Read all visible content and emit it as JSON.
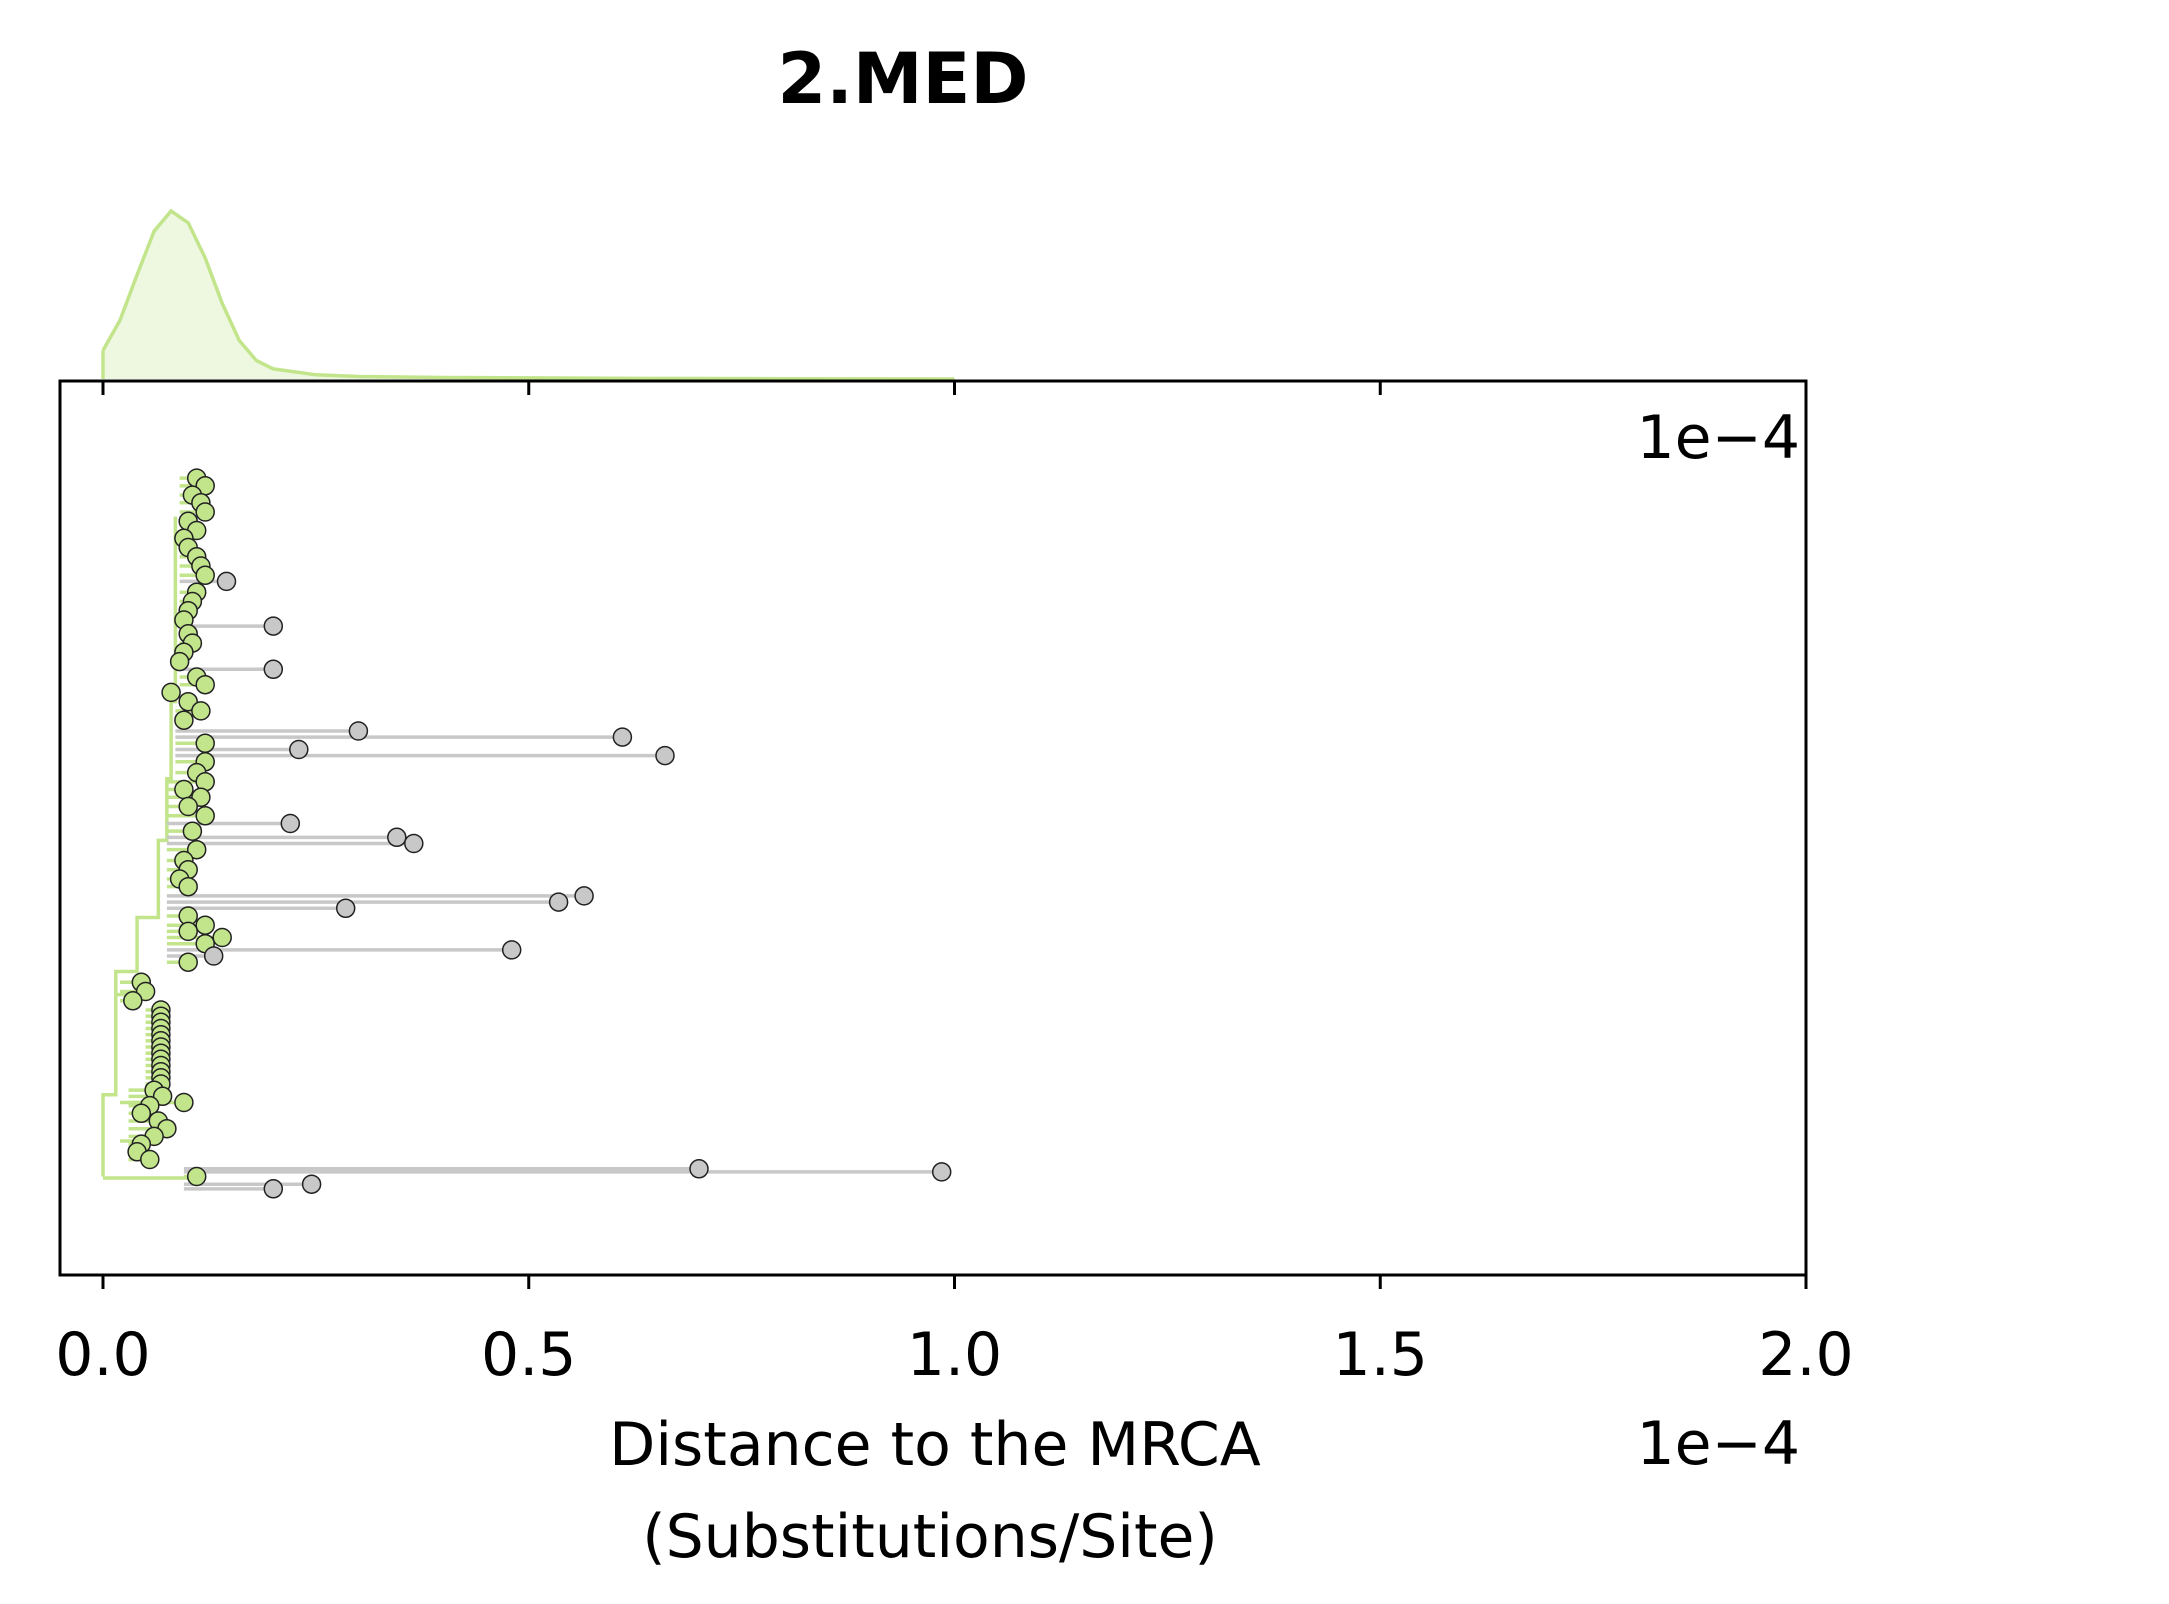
{
  "chart_data": {
    "type": "scatter",
    "title": "2.MED",
    "xlabel": "Distance to the MRCA",
    "xlabel_line2": "(Substitutions/Site)",
    "x_offset_label": "1e−4",
    "corner_offset_label": "1e−4",
    "xlim": [
      -0.05,
      2.0
    ],
    "x_ticks": [
      0.0,
      0.5,
      1.0,
      1.5,
      2.0
    ],
    "x_tick_labels": [
      "0.0",
      "0.5",
      "1.0",
      "1.5",
      "2.0"
    ],
    "grid": false,
    "colors": {
      "clade": "#c2e58c",
      "clade_fill": "#eef8e1",
      "outlier": "#c8c8c8",
      "outlier_stroke": "#b4b4b4",
      "axis": "#000000"
    },
    "density": {
      "series": "distance distribution",
      "x": [
        0.0,
        0.02,
        0.04,
        0.06,
        0.08,
        0.1,
        0.12,
        0.14,
        0.16,
        0.18,
        0.2,
        0.25,
        0.3,
        0.4,
        0.6,
        0.8,
        1.0
      ],
      "y": [
        0.17,
        0.35,
        0.62,
        0.88,
        1.0,
        0.93,
        0.72,
        0.45,
        0.23,
        0.11,
        0.06,
        0.025,
        0.015,
        0.009,
        0.004,
        0.002,
        0.0
      ]
    },
    "tips": [
      {
        "x": 0.11,
        "y": 1.5,
        "group": "clade"
      },
      {
        "x": 0.12,
        "y": 2.0,
        "group": "clade"
      },
      {
        "x": 0.105,
        "y": 2.6,
        "group": "clade"
      },
      {
        "x": 0.115,
        "y": 3.1,
        "group": "clade"
      },
      {
        "x": 0.12,
        "y": 3.7,
        "group": "clade"
      },
      {
        "x": 0.1,
        "y": 4.3,
        "group": "clade"
      },
      {
        "x": 0.11,
        "y": 4.9,
        "group": "clade"
      },
      {
        "x": 0.095,
        "y": 5.4,
        "group": "clade"
      },
      {
        "x": 0.1,
        "y": 6.0,
        "group": "clade"
      },
      {
        "x": 0.11,
        "y": 6.6,
        "group": "clade"
      },
      {
        "x": 0.115,
        "y": 7.2,
        "group": "clade"
      },
      {
        "x": 0.12,
        "y": 7.8,
        "group": "clade"
      },
      {
        "x": 0.145,
        "y": 8.2,
        "group": "outlier"
      },
      {
        "x": 0.11,
        "y": 8.9,
        "group": "clade"
      },
      {
        "x": 0.105,
        "y": 9.5,
        "group": "clade"
      },
      {
        "x": 0.1,
        "y": 10.1,
        "group": "clade"
      },
      {
        "x": 0.095,
        "y": 10.7,
        "group": "clade"
      },
      {
        "x": 0.2,
        "y": 11.1,
        "group": "outlier"
      },
      {
        "x": 0.1,
        "y": 11.6,
        "group": "clade"
      },
      {
        "x": 0.105,
        "y": 12.2,
        "group": "clade"
      },
      {
        "x": 0.095,
        "y": 12.8,
        "group": "clade"
      },
      {
        "x": 0.09,
        "y": 13.4,
        "group": "clade"
      },
      {
        "x": 0.2,
        "y": 13.9,
        "group": "outlier"
      },
      {
        "x": 0.11,
        "y": 14.4,
        "group": "clade"
      },
      {
        "x": 0.12,
        "y": 14.9,
        "group": "clade"
      },
      {
        "x": 0.08,
        "y": 15.4,
        "group": "clade"
      },
      {
        "x": 0.1,
        "y": 16.0,
        "group": "clade"
      },
      {
        "x": 0.115,
        "y": 16.6,
        "group": "clade"
      },
      {
        "x": 0.095,
        "y": 17.2,
        "group": "clade"
      },
      {
        "x": 0.3,
        "y": 17.9,
        "group": "outlier"
      },
      {
        "x": 0.61,
        "y": 18.3,
        "group": "outlier"
      },
      {
        "x": 0.12,
        "y": 18.7,
        "group": "clade"
      },
      {
        "x": 0.23,
        "y": 19.1,
        "group": "outlier"
      },
      {
        "x": 0.66,
        "y": 19.5,
        "group": "outlier"
      },
      {
        "x": 0.12,
        "y": 19.9,
        "group": "clade"
      },
      {
        "x": 0.11,
        "y": 20.6,
        "group": "clade"
      },
      {
        "x": 0.12,
        "y": 21.2,
        "group": "clade"
      },
      {
        "x": 0.095,
        "y": 21.7,
        "group": "clade"
      },
      {
        "x": 0.115,
        "y": 22.2,
        "group": "clade"
      },
      {
        "x": 0.1,
        "y": 22.8,
        "group": "clade"
      },
      {
        "x": 0.12,
        "y": 23.4,
        "group": "clade"
      },
      {
        "x": 0.22,
        "y": 23.9,
        "group": "outlier"
      },
      {
        "x": 0.105,
        "y": 24.4,
        "group": "clade"
      },
      {
        "x": 0.345,
        "y": 24.8,
        "group": "outlier"
      },
      {
        "x": 0.365,
        "y": 25.2,
        "group": "outlier"
      },
      {
        "x": 0.11,
        "y": 25.6,
        "group": "clade"
      },
      {
        "x": 0.095,
        "y": 26.3,
        "group": "clade"
      },
      {
        "x": 0.1,
        "y": 26.9,
        "group": "clade"
      },
      {
        "x": 0.09,
        "y": 27.5,
        "group": "clade"
      },
      {
        "x": 0.1,
        "y": 28.0,
        "group": "clade"
      },
      {
        "x": 0.565,
        "y": 28.6,
        "group": "outlier"
      },
      {
        "x": 0.535,
        "y": 29.0,
        "group": "outlier"
      },
      {
        "x": 0.285,
        "y": 29.4,
        "group": "outlier"
      },
      {
        "x": 0.1,
        "y": 29.9,
        "group": "clade"
      },
      {
        "x": 0.12,
        "y": 30.5,
        "group": "clade"
      },
      {
        "x": 0.1,
        "y": 30.9,
        "group": "clade"
      },
      {
        "x": 0.14,
        "y": 31.3,
        "group": "clade"
      },
      {
        "x": 0.12,
        "y": 31.7,
        "group": "clade"
      },
      {
        "x": 0.48,
        "y": 32.1,
        "group": "outlier"
      },
      {
        "x": 0.13,
        "y": 32.5,
        "group": "outlier"
      },
      {
        "x": 0.1,
        "y": 32.9,
        "group": "clade"
      },
      {
        "x": 0.045,
        "y": 34.2,
        "group": "clade"
      },
      {
        "x": 0.05,
        "y": 34.8,
        "group": "clade"
      },
      {
        "x": 0.035,
        "y": 35.4,
        "group": "clade"
      },
      {
        "x": 0.068,
        "y": 36.0,
        "group": "clade"
      },
      {
        "x": 0.068,
        "y": 36.4,
        "group": "clade"
      },
      {
        "x": 0.068,
        "y": 36.8,
        "group": "clade"
      },
      {
        "x": 0.068,
        "y": 37.2,
        "group": "clade"
      },
      {
        "x": 0.068,
        "y": 37.6,
        "group": "clade"
      },
      {
        "x": 0.068,
        "y": 38.0,
        "group": "clade"
      },
      {
        "x": 0.068,
        "y": 38.4,
        "group": "clade"
      },
      {
        "x": 0.068,
        "y": 38.8,
        "group": "clade"
      },
      {
        "x": 0.068,
        "y": 39.2,
        "group": "clade"
      },
      {
        "x": 0.068,
        "y": 39.6,
        "group": "clade"
      },
      {
        "x": 0.068,
        "y": 40.0,
        "group": "clade"
      },
      {
        "x": 0.068,
        "y": 40.4,
        "group": "clade"
      },
      {
        "x": 0.068,
        "y": 40.8,
        "group": "clade"
      },
      {
        "x": 0.06,
        "y": 41.2,
        "group": "clade"
      },
      {
        "x": 0.07,
        "y": 41.6,
        "group": "clade"
      },
      {
        "x": 0.095,
        "y": 42.0,
        "group": "clade"
      },
      {
        "x": 0.055,
        "y": 42.2,
        "group": "clade"
      },
      {
        "x": 0.045,
        "y": 42.7,
        "group": "clade"
      },
      {
        "x": 0.065,
        "y": 43.2,
        "group": "clade"
      },
      {
        "x": 0.075,
        "y": 43.7,
        "group": "clade"
      },
      {
        "x": 0.06,
        "y": 44.2,
        "group": "clade"
      },
      {
        "x": 0.045,
        "y": 44.7,
        "group": "clade"
      },
      {
        "x": 0.04,
        "y": 45.2,
        "group": "clade"
      },
      {
        "x": 0.055,
        "y": 45.7,
        "group": "clade"
      },
      {
        "x": 0.7,
        "y": 46.3,
        "group": "outlier"
      },
      {
        "x": 0.985,
        "y": 46.5,
        "group": "outlier"
      },
      {
        "x": 0.11,
        "y": 46.8,
        "group": "clade"
      },
      {
        "x": 0.245,
        "y": 47.3,
        "group": "outlier"
      },
      {
        "x": 0.2,
        "y": 47.6,
        "group": "outlier"
      }
    ],
    "y_range": [
      0,
      51
    ]
  }
}
